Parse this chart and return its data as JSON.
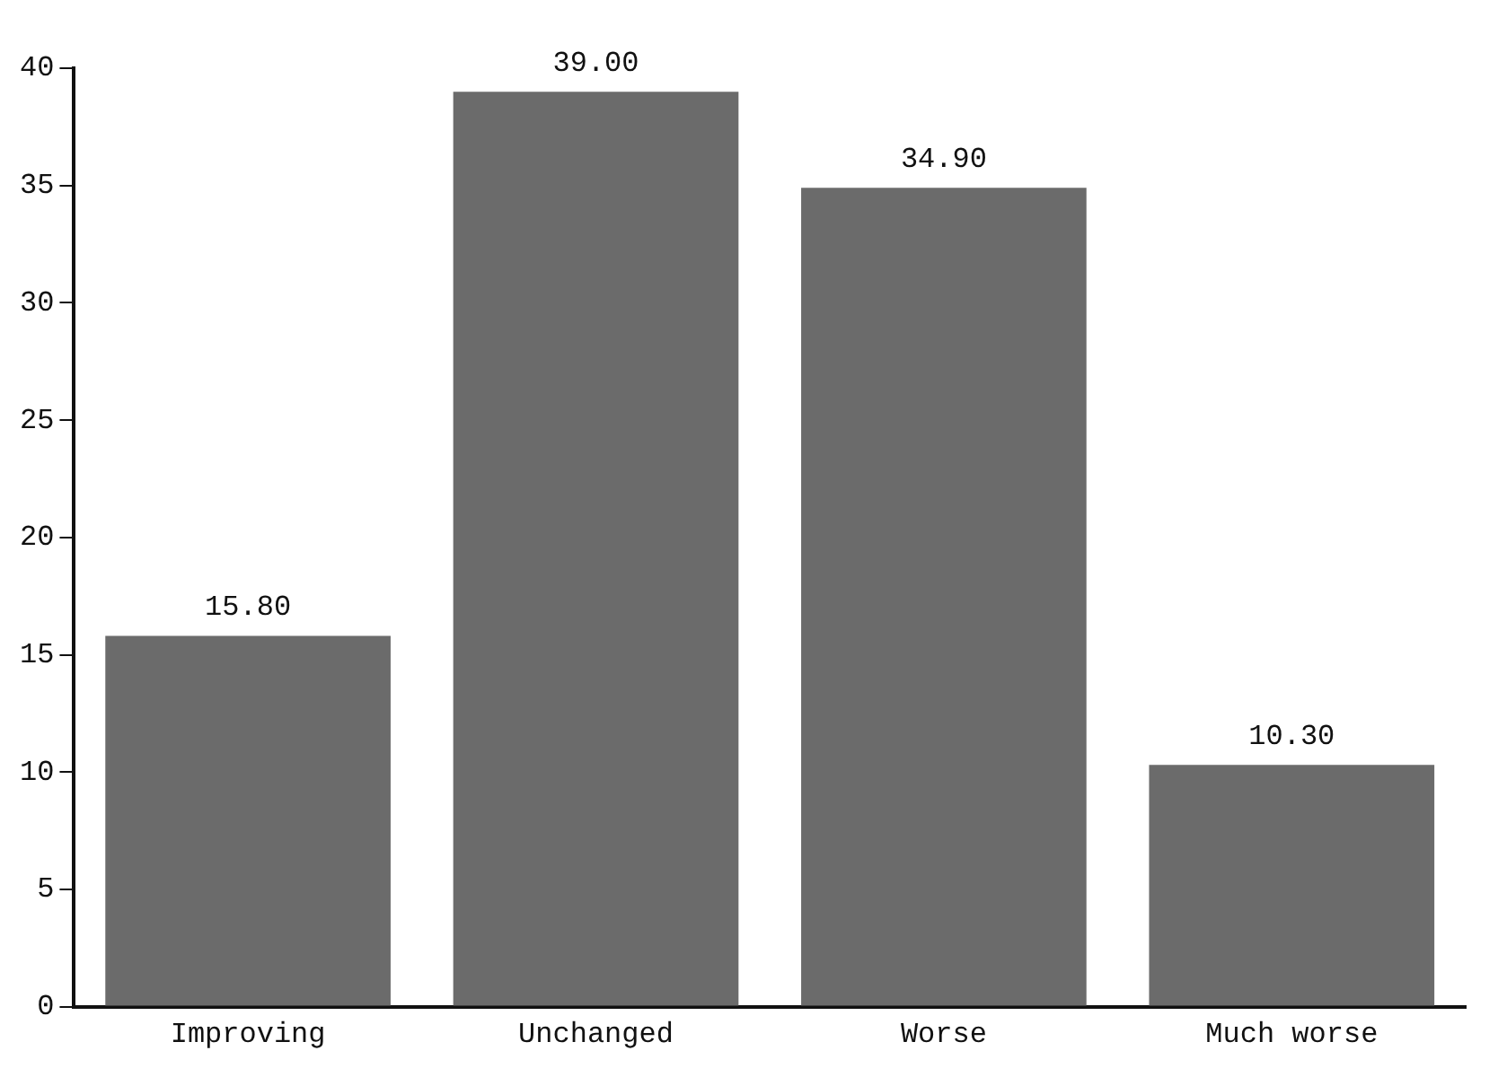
{
  "chart_data": {
    "type": "bar",
    "categories": [
      "Improving",
      "Unchanged",
      "Worse",
      "Much worse"
    ],
    "values": [
      15.8,
      39.0,
      34.9,
      10.3
    ],
    "value_labels": [
      "15.80",
      "39.00",
      "34.90",
      "10.30"
    ],
    "color": "#6b6b6b",
    "ylim": [
      0,
      40
    ],
    "yticks": [
      0,
      5,
      10,
      15,
      20,
      25,
      30,
      35,
      40
    ]
  }
}
